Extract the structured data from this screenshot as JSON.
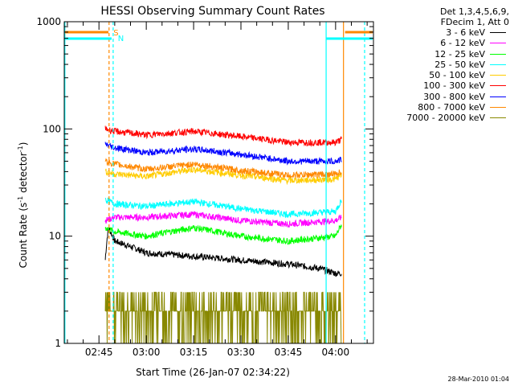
{
  "chart_data": {
    "type": "line",
    "title": "HESSI Observing Summary Count Rates",
    "xlabel": "Start Time (26-Jan-07 02:34:22)",
    "ylabel_main": "Count Rate (s",
    "ylabel_sup1": "-1",
    "ylabel_mid": " detector",
    "ylabel_sup2": "-1",
    "ylabel_end": ")",
    "yscale": "log",
    "ylim": [
      1,
      1000
    ],
    "xlim": [
      "02:34",
      "04:12"
    ],
    "yticks": [
      "1",
      "10",
      "100",
      "1000"
    ],
    "xticks": [
      "02:45",
      "03:00",
      "03:15",
      "03:30",
      "03:45",
      "04:00"
    ],
    "grid": false,
    "legend_position": "right",
    "legend_header": [
      "Det 1,3,4,5,6,9,",
      "FDecim 1, Att 0"
    ],
    "annotations": {
      "s": "S",
      "n": "N"
    },
    "timestamp": "28-Mar-2010 01:04",
    "series": [
      {
        "name": "3 - 6 keV",
        "color": "#000000",
        "x": [
          "02:47",
          "02:48",
          "02:50",
          "03:00",
          "03:15",
          "03:30",
          "03:45",
          "03:55",
          "04:00",
          "04:02"
        ],
        "values": [
          6,
          12,
          9,
          7,
          6.5,
          6,
          5.5,
          5,
          4.5,
          4.5
        ]
      },
      {
        "name": "6 - 12 keV",
        "color": "#ff00ff",
        "x": [
          "02:47",
          "02:50",
          "03:00",
          "03:15",
          "03:30",
          "03:45",
          "04:00",
          "04:02"
        ],
        "values": [
          14,
          15,
          15,
          16,
          14,
          13,
          14,
          15
        ]
      },
      {
        "name": "12 - 25 keV",
        "color": "#00ff00",
        "x": [
          "02:47",
          "02:50",
          "03:00",
          "03:15",
          "03:30",
          "03:45",
          "04:00",
          "04:02"
        ],
        "values": [
          12,
          11,
          10,
          12,
          10,
          9,
          10,
          13
        ]
      },
      {
        "name": "25 - 50 keV",
        "color": "#00ffff",
        "x": [
          "02:47",
          "02:50",
          "03:00",
          "03:15",
          "03:30",
          "03:45",
          "04:00",
          "04:02"
        ],
        "values": [
          22,
          20,
          19,
          21,
          18,
          16,
          17,
          22
        ]
      },
      {
        "name": "50 - 100 keV",
        "color": "#ffcc00",
        "x": [
          "02:47",
          "02:50",
          "03:00",
          "03:15",
          "03:30",
          "03:45",
          "04:00",
          "04:02"
        ],
        "values": [
          40,
          38,
          36,
          42,
          37,
          33,
          34,
          38
        ]
      },
      {
        "name": "100 - 300 keV",
        "color": "#ff0000",
        "x": [
          "02:47",
          "02:50",
          "03:00",
          "03:15",
          "03:30",
          "03:45",
          "04:00",
          "04:02"
        ],
        "values": [
          100,
          95,
          88,
          95,
          85,
          75,
          75,
          80
        ]
      },
      {
        "name": "300 - 800 keV",
        "color": "#0000ff",
        "x": [
          "02:47",
          "02:50",
          "03:00",
          "03:15",
          "03:30",
          "03:45",
          "04:00",
          "04:02"
        ],
        "values": [
          72,
          67,
          60,
          65,
          58,
          50,
          50,
          52
        ]
      },
      {
        "name": "800 - 7000 keV",
        "color": "#ff8800",
        "x": [
          "02:47",
          "02:50",
          "03:00",
          "03:15",
          "03:30",
          "03:45",
          "04:00",
          "04:02"
        ],
        "values": [
          50,
          47,
          42,
          47,
          41,
          37,
          38,
          40
        ]
      },
      {
        "name": "7000 - 20000 keV",
        "color": "#888800",
        "x": [
          "02:47",
          "02:50",
          "03:00",
          "03:15",
          "03:30",
          "03:45",
          "04:00",
          "04:02"
        ],
        "values": [
          2,
          2,
          2,
          2,
          2,
          2,
          2,
          2
        ]
      }
    ]
  }
}
